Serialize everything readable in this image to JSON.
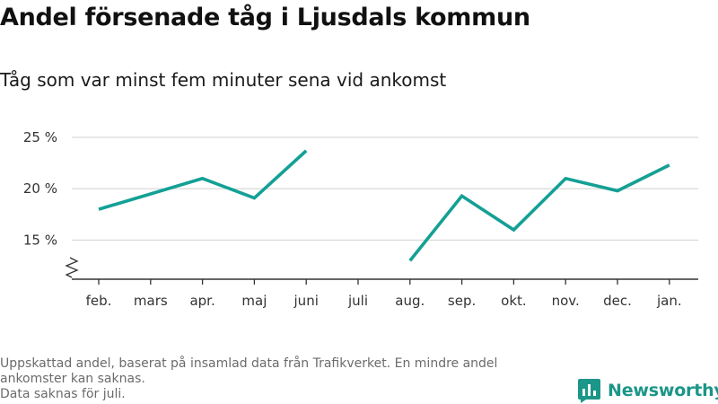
{
  "title": "Andel försenade tåg i Ljusdals kommun",
  "subtitle": "Tåg som var minst fem minuter sena vid ankomst",
  "footer": {
    "line1": "Uppskattad andel, baserat på insamlad data från Trafikverket. En mindre andel\nankomster kan saknas.",
    "line2": "Data saknas för juli."
  },
  "logo": {
    "name": "Newsworthy",
    "icon": "newsworthy-logo-icon",
    "color": "#1b9688"
  },
  "colors": {
    "line": "#14a095",
    "grid": "#d9d9d9",
    "axis": "#333333",
    "tick_text": "#333333"
  },
  "chart_data": {
    "type": "line",
    "title": "Andel försenade tåg i Ljusdals kommun",
    "subtitle": "Tåg som var minst fem minuter sena vid ankomst",
    "categories": [
      "feb.",
      "mars",
      "apr.",
      "maj",
      "juni",
      "juli",
      "aug.",
      "sep.",
      "okt.",
      "nov.",
      "dec.",
      "jan."
    ],
    "series": [
      {
        "values": [
          18.0,
          19.5,
          21.0,
          19.1,
          23.7,
          null,
          13.0,
          19.3,
          16.0,
          21.0,
          19.8,
          22.3
        ]
      }
    ],
    "y_ticks": [
      15,
      20,
      25
    ],
    "y_tick_labels": [
      "15 %",
      "20 %",
      "25 %"
    ],
    "ylim": [
      11.2,
      25
    ],
    "y_axis_break": true,
    "grid": true,
    "legend": "none"
  }
}
